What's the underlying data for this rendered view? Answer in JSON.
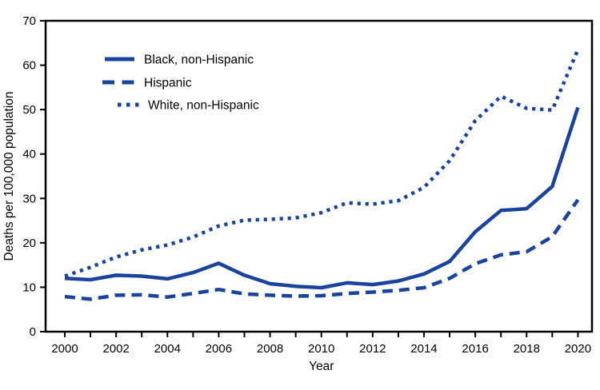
{
  "figure": {
    "background": "#ffffff",
    "line_color": "#1a449c",
    "axis_color": "#000000"
  },
  "chart_data": {
    "type": "line",
    "title": "",
    "xlabel": "Year",
    "ylabel": "Deaths per 100,000 population",
    "x": [
      2000,
      2001,
      2002,
      2003,
      2004,
      2005,
      2006,
      2007,
      2008,
      2009,
      2010,
      2011,
      2012,
      2013,
      2014,
      2015,
      2016,
      2017,
      2018,
      2019,
      2020
    ],
    "x_tick_labels": [
      "2000",
      "2002",
      "2004",
      "2006",
      "2008",
      "2010",
      "2012",
      "2014",
      "2016",
      "2018",
      "2020"
    ],
    "xlim": [
      1999.3,
      2020.6
    ],
    "ylim": [
      0,
      70
    ],
    "y_ticks": [
      0,
      10,
      20,
      30,
      40,
      50,
      60,
      70
    ],
    "grid": false,
    "legend_position": "upper-left-inside",
    "series": [
      {
        "name": "Black, non-Hispanic",
        "style": "solid",
        "values": [
          12.0,
          11.7,
          12.7,
          12.5,
          11.9,
          13.3,
          15.4,
          12.7,
          10.8,
          10.2,
          9.9,
          11.0,
          10.6,
          11.4,
          13.0,
          15.8,
          22.5,
          27.3,
          27.7,
          32.7,
          50.5
        ]
      },
      {
        "name": "Hispanic",
        "style": "dashed",
        "values": [
          7.9,
          7.3,
          8.2,
          8.3,
          7.8,
          8.6,
          9.5,
          8.5,
          8.2,
          8.0,
          8.1,
          8.6,
          8.9,
          9.3,
          9.9,
          12.0,
          15.3,
          17.3,
          18.0,
          21.4,
          29.7
        ]
      },
      {
        "name": "White, non-Hispanic",
        "style": "dotted",
        "values": [
          12.5,
          14.5,
          16.8,
          18.4,
          19.5,
          21.3,
          23.8,
          25.1,
          25.3,
          25.6,
          26.8,
          29.0,
          28.7,
          29.5,
          32.5,
          38.5,
          47.5,
          53.0,
          50.3,
          49.9,
          63.5
        ]
      }
    ]
  }
}
